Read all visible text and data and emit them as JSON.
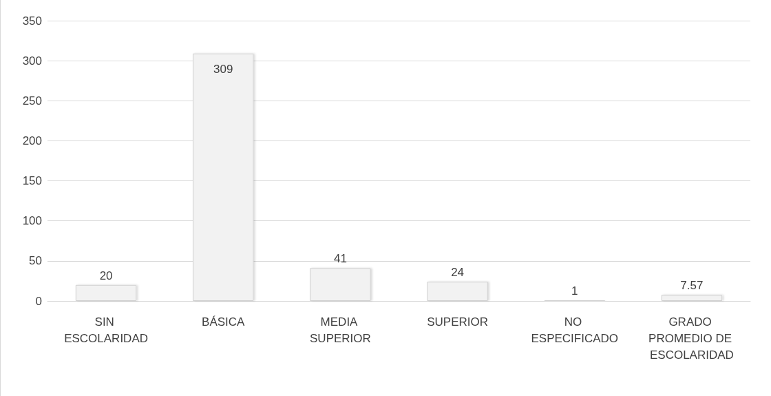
{
  "chart_data": {
    "type": "bar",
    "categories": [
      "SIN ESCOLARIDAD",
      "BÁSICA",
      "MEDIA SUPERIOR",
      "SUPERIOR",
      "NO ESPECIFICADO",
      "GRADO PROMEDIO DE ESCOLARIDAD"
    ],
    "values": [
      20,
      309,
      41,
      24,
      1,
      7.57
    ],
    "color": "#f2f2f2",
    "ylim": [
      0,
      350
    ],
    "yticks": [
      0,
      50,
      100,
      150,
      200,
      250,
      300,
      350
    ],
    "grid": "y",
    "data_labels": true
  }
}
